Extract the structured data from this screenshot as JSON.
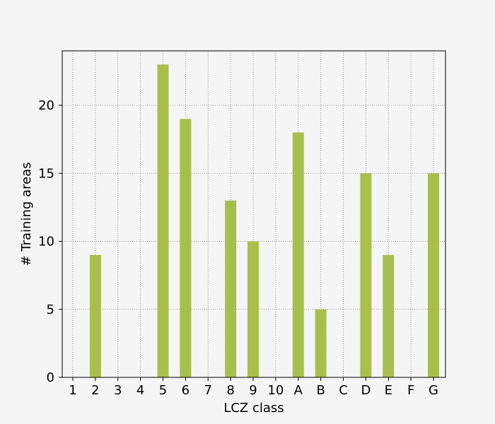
{
  "chart_data": {
    "type": "bar",
    "title": "",
    "xlabel": "LCZ class",
    "ylabel": "# Training areas",
    "categories": [
      "1",
      "2",
      "3",
      "4",
      "5",
      "6",
      "7",
      "8",
      "9",
      "10",
      "A",
      "B",
      "C",
      "D",
      "E",
      "F",
      "G"
    ],
    "values": [
      0,
      9,
      0,
      0,
      23,
      19,
      0,
      13,
      10,
      0,
      18,
      5,
      0,
      15,
      9,
      0,
      15
    ],
    "ylim": [
      0,
      24
    ],
    "yticks": [
      0,
      5,
      10,
      15,
      20
    ],
    "grid": true,
    "bar_color": "#a4bc42",
    "background_color": "#f5f5f5",
    "grid_color": "#808080"
  }
}
